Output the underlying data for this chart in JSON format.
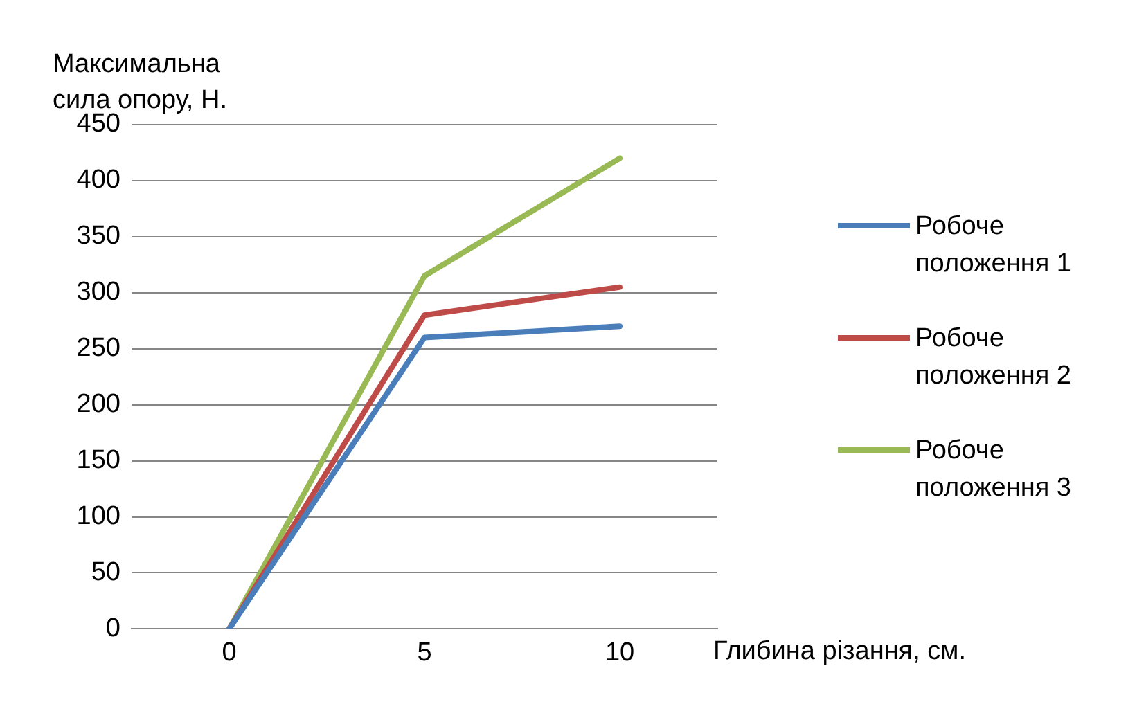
{
  "chart_data": {
    "type": "line",
    "xlabel": "Глибина різання, см.",
    "ylabel": "Максимальна\nсила опору, Н.",
    "categories": [
      "0",
      "5",
      "10"
    ],
    "ylim": [
      0,
      450
    ],
    "yticks": [
      0,
      50,
      100,
      150,
      200,
      250,
      300,
      350,
      400,
      450
    ],
    "grid": "y",
    "legend": "right",
    "marker": "none",
    "line_style": "solid",
    "series": [
      {
        "name": "Робоче\nположення 1",
        "color": "#4a7ebb",
        "values": [
          0,
          260,
          270
        ]
      },
      {
        "name": "Робоче\nположення 2",
        "color": "#be4b48",
        "values": [
          0,
          280,
          305
        ]
      },
      {
        "name": "Робоче\nположення 3",
        "color": "#98b954",
        "values": [
          0,
          315,
          420
        ]
      }
    ]
  }
}
